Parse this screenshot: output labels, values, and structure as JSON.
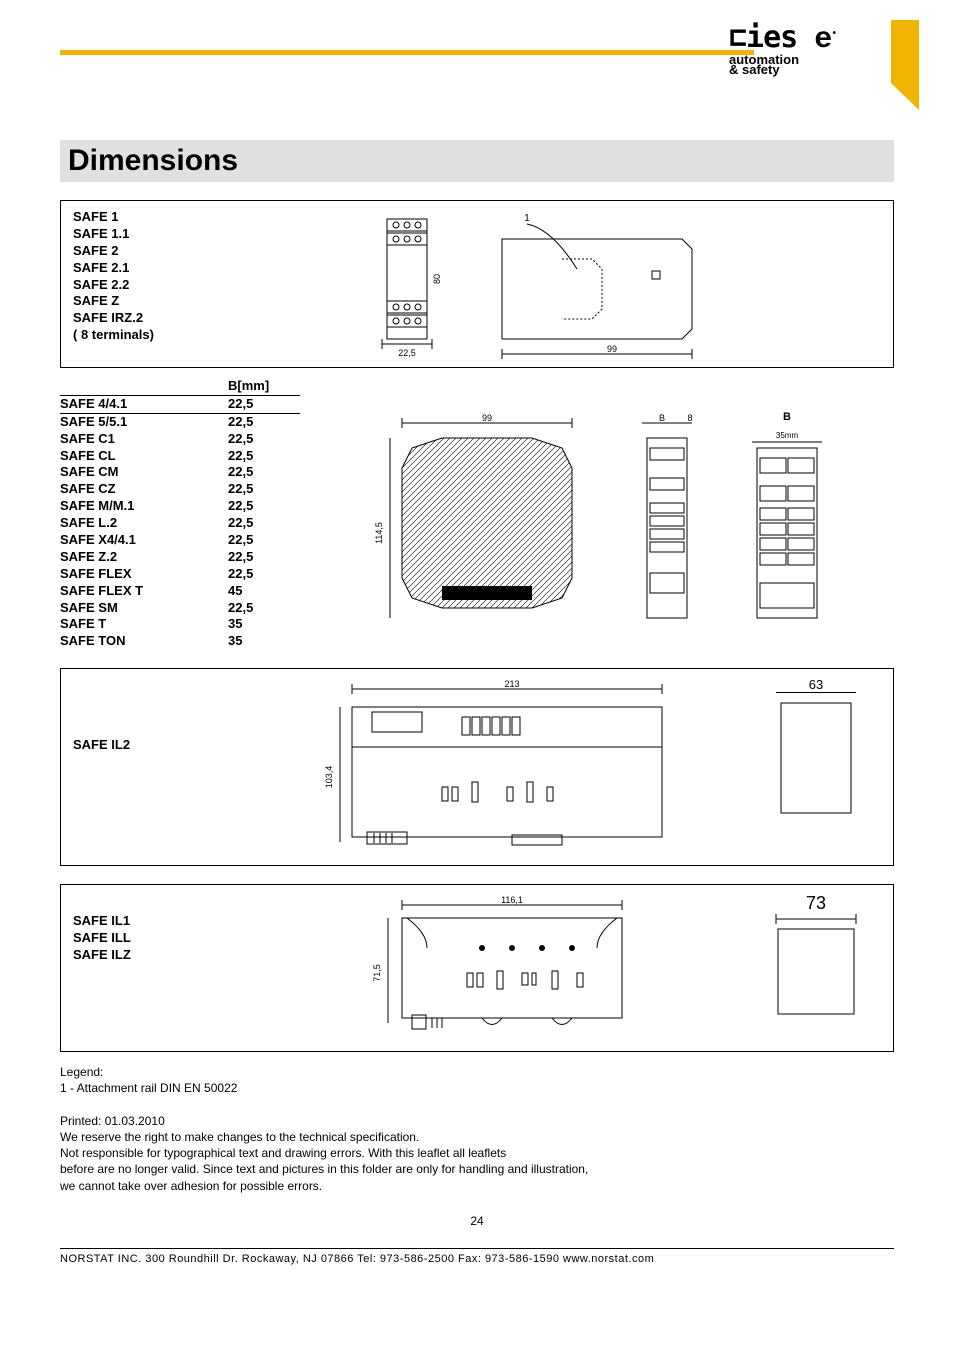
{
  "brand": {
    "logo_main": "ries e",
    "logo_sub1": "automation",
    "logo_sub2": "& safety",
    "gold": "#f0b400",
    "gray": "#e0e0e0"
  },
  "title": "Dimensions",
  "box1": {
    "labels": [
      "SAFE 1",
      "SAFE 1.1",
      "SAFE 2",
      "SAFE 2.1",
      "SAFE 2.2",
      "SAFE Z",
      "SAFE IRZ.2",
      "( 8 terminals)"
    ],
    "dim_w": "22,5",
    "dim_h": "80",
    "dim_len": "99",
    "callout": "1"
  },
  "table": {
    "header": "B[mm]",
    "rows": [
      {
        "name": "SAFE 4/4.1",
        "val": "22,5"
      },
      {
        "name": "SAFE 5/5.1",
        "val": "22,5"
      },
      {
        "name": "SAFE C1",
        "val": "22,5"
      },
      {
        "name": "SAFE CL",
        "val": "22,5"
      },
      {
        "name": "SAFE CM",
        "val": "22,5"
      },
      {
        "name": "SAFE CZ",
        "val": "22,5"
      },
      {
        "name": "SAFE M/M.1",
        "val": "22,5"
      },
      {
        "name": "SAFE L.2",
        "val": "22,5"
      },
      {
        "name": "SAFE X4/4.1",
        "val": "22,5"
      },
      {
        "name": "SAFE Z.2",
        "val": "22,5"
      },
      {
        "name": "SAFE FLEX",
        "val": "22,5"
      },
      {
        "name": "SAFE FLEX T",
        "val": "45"
      },
      {
        "name": "SAFE SM",
        "val": "22,5"
      },
      {
        "name": "SAFE T",
        "val": "35"
      },
      {
        "name": "SAFE TON",
        "val": "35"
      }
    ],
    "dim_len": "99",
    "dim_h": "114,5",
    "dim_b": "B",
    "dim_8": "8",
    "dim_35mm": "35mm",
    "right_header": "B"
  },
  "box3": {
    "labels": [
      "SAFE IL2"
    ],
    "dim_w": "213",
    "dim_h": "103,4",
    "dim_side": "63"
  },
  "box4": {
    "labels": [
      "SAFE IL1",
      "",
      "SAFE ILL",
      "",
      "SAFE ILZ"
    ],
    "dim_w": "116,1",
    "dim_h": "71,5",
    "dim_side": "73"
  },
  "legend": {
    "title": "Legend:",
    "line1": "1 - Attachment rail DIN EN 50022",
    "printed": "Printed:  01.03.2010",
    "p1": "We reserve the right to make changes to the technical specification.",
    "p2": "Not responsible for typographical text and drawing errors. With this leaflet all leaflets",
    "p3": " before are no longer valid. Since text and pictures in this folder are only for handling and illustration,",
    "p4": "we cannot take over adhesion for possible errors."
  },
  "page_number": "24",
  "footer": "NORSTAT INC. 300 Roundhill Dr. Rockaway, NJ 07866  Tel: 973-586-2500   Fax: 973-586-1590   www.norstat.com"
}
